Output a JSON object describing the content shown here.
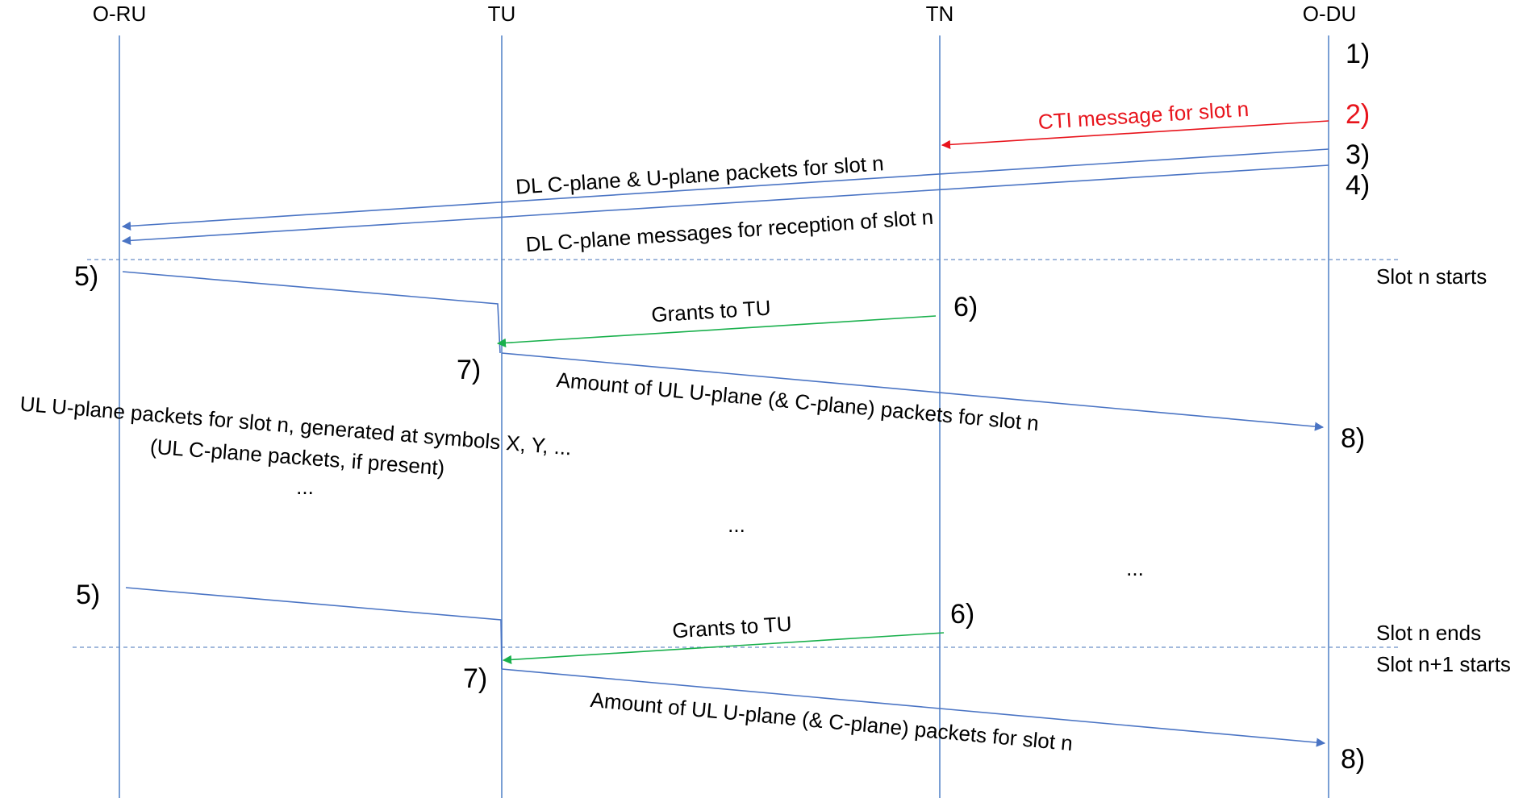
{
  "lifelines": {
    "oru": "O-RU",
    "tu": "TU",
    "tn": "TN",
    "odu": "O-DU"
  },
  "steps": {
    "s1": "1)",
    "s2": "2)",
    "s3": "3)",
    "s4": "4)",
    "s5a": "5)",
    "s6a": "6)",
    "s7a": "7)",
    "s8a": "8)",
    "s5b": "5)",
    "s6b": "6)",
    "s7b": "7)",
    "s8b": "8)"
  },
  "messages": {
    "cti": "CTI message for slot n",
    "dl_cu": "DL C-plane & U-plane packets for slot n",
    "dl_c_rx": "DL C-plane messages for reception of slot n",
    "grants_a": "Grants to TU",
    "amount_a": "Amount of UL U-plane (& C-plane) packets for slot n",
    "grants_b": "Grants to TU",
    "amount_b": "Amount of UL U-plane (& C-plane) packets for slot n"
  },
  "notes": {
    "ul_u_plane": "UL U-plane packets for slot n, generated at symbols X, Y, ...",
    "ul_c_plane": "(UL C-plane packets, if present)",
    "ellipsis_left": "...",
    "ellipsis_mid": "...",
    "ellipsis_right": "..."
  },
  "slots": {
    "start": "Slot n starts",
    "end": "Slot n ends",
    "next_start": "Slot n+1 starts"
  },
  "colors": {
    "lifeline": "#7a9fd4",
    "message": "#4a74c4",
    "cti": "#e8141c",
    "grant": "#19b04c"
  }
}
